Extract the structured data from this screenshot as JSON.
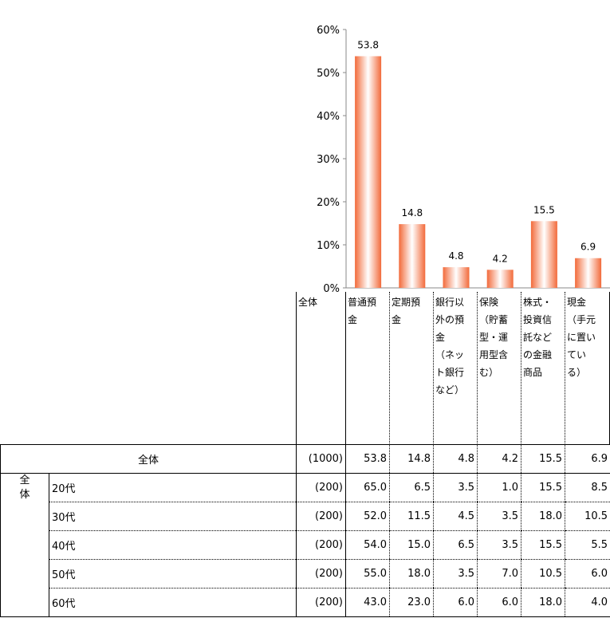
{
  "chart_data": {
    "type": "bar",
    "categories": [
      "普通預金",
      "定期預金",
      "銀行以外の預金（ネット銀行など）",
      "保険（貯蓄型・運用型含む）",
      "株式・投資信託などの金融商品",
      "現金（手元に置いている）"
    ],
    "values": [
      53.8,
      14.8,
      4.8,
      4.2,
      15.5,
      6.9
    ],
    "data_labels": [
      "53.8",
      "14.8",
      "4.8",
      "4.2",
      "15.5",
      "6.9"
    ],
    "ylim": [
      0,
      60
    ],
    "yticks": [
      "0%",
      "10%",
      "20%",
      "30%",
      "40%",
      "50%",
      "60%"
    ],
    "grid": false,
    "bar_color": "#f26a3a"
  },
  "table": {
    "header_total": "全体",
    "column_headers": [
      [
        "普通預",
        "金"
      ],
      [
        "定期預",
        "金"
      ],
      [
        "銀行以",
        "外の預",
        "金",
        "（ネッ",
        "ト銀行",
        "など）"
      ],
      [
        "保険",
        "（貯蓄",
        "型・運",
        "用型含",
        "む）"
      ],
      [
        "株式・",
        "投資信",
        "託など",
        "の金融",
        "商品"
      ],
      [
        "現金",
        "（手元",
        "に置い",
        "てい",
        "る）"
      ]
    ],
    "total_row": {
      "label": "全体",
      "n": "(1000)",
      "values": [
        "53.8",
        "14.8",
        "4.8",
        "4.2",
        "15.5",
        "6.9"
      ]
    },
    "group_label": [
      "全",
      "体"
    ],
    "rows": [
      {
        "label": "20代",
        "n": "(200)",
        "values": [
          "65.0",
          "6.5",
          "3.5",
          "1.0",
          "15.5",
          "8.5"
        ]
      },
      {
        "label": "30代",
        "n": "(200)",
        "values": [
          "52.0",
          "11.5",
          "4.5",
          "3.5",
          "18.0",
          "10.5"
        ]
      },
      {
        "label": "40代",
        "n": "(200)",
        "values": [
          "54.0",
          "15.0",
          "6.5",
          "3.5",
          "15.5",
          "5.5"
        ]
      },
      {
        "label": "50代",
        "n": "(200)",
        "values": [
          "55.0",
          "18.0",
          "3.5",
          "7.0",
          "10.5",
          "6.0"
        ]
      },
      {
        "label": "60代",
        "n": "(200)",
        "values": [
          "43.0",
          "23.0",
          "6.0",
          "6.0",
          "18.0",
          "4.0"
        ]
      }
    ]
  }
}
